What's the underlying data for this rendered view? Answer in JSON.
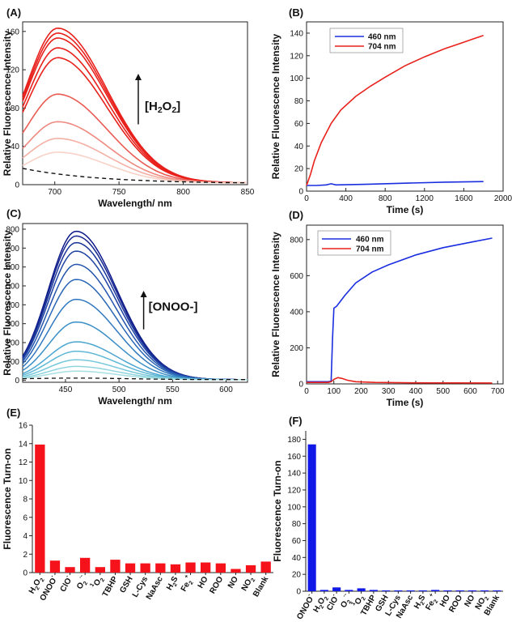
{
  "chart_data": [
    {
      "panel": "(A)",
      "type": "line",
      "xlabel": "Wavelength/ nm",
      "ylabel": "Relative Fluorescence Intensity",
      "xlim": [
        675,
        850
      ],
      "ylim": [
        0,
        170
      ],
      "xticks": [
        700,
        750,
        800,
        850
      ],
      "yticks": [
        0,
        40,
        80,
        120,
        160
      ],
      "annotation": "[H2O2]",
      "annotation_arrow": "up",
      "peak_x": 703,
      "series": [
        {
          "peak": 157,
          "color": "#e8211c"
        },
        {
          "peak": 152,
          "color": "#e8211c"
        },
        {
          "peak": 147,
          "color": "#e8211c"
        },
        {
          "peak": 137,
          "color": "#e8211c"
        },
        {
          "peak": 127,
          "color": "#e8211c"
        },
        {
          "peak": 90,
          "color": "#ea5a52"
        },
        {
          "peak": 62,
          "color": "#ef8a80"
        },
        {
          "peak": 45,
          "color": "#f4b0a4"
        },
        {
          "peak": 31,
          "color": "#f8d2c6"
        },
        {
          "peak": 17,
          "color": "#111111",
          "dashed": true
        }
      ]
    },
    {
      "panel": "(B)",
      "type": "line",
      "xlabel": "Time (s)",
      "ylabel": "Relative Fluorescence Intensity",
      "xlim": [
        0,
        2000
      ],
      "ylim": [
        0,
        150
      ],
      "xticks": [
        0,
        400,
        800,
        1200,
        1600,
        2000
      ],
      "yticks": [
        0,
        20,
        40,
        60,
        80,
        100,
        120,
        140
      ],
      "legend_position": "top-left",
      "series": [
        {
          "name": "460 nm",
          "color": "#1a2ee0",
          "x": [
            0,
            100,
            200,
            250,
            300,
            600,
            1000,
            1400,
            1800
          ],
          "y": [
            5,
            5,
            5.5,
            6.5,
            5.5,
            6,
            7,
            8,
            8.5
          ]
        },
        {
          "name": "704 nm",
          "color": "#e8211c",
          "x": [
            0,
            40,
            80,
            150,
            250,
            350,
            500,
            650,
            800,
            1000,
            1200,
            1400,
            1600,
            1700,
            1800
          ],
          "y": [
            5,
            15,
            27,
            43,
            60,
            72,
            84,
            93,
            101,
            111,
            119,
            126,
            132,
            135,
            138
          ]
        }
      ]
    },
    {
      "panel": "(C)",
      "type": "line",
      "xlabel": "Wavelength/ nm",
      "ylabel": "Relative Fluorescence Intensity",
      "xlim": [
        410,
        620
      ],
      "ylim": [
        -10,
        830
      ],
      "xticks": [
        450,
        500,
        550,
        600
      ],
      "yticks": [
        0,
        100,
        200,
        300,
        400,
        500,
        600,
        700,
        800
      ],
      "annotation": "[ONOO-]",
      "annotation_arrow": "up",
      "peak_x": 460,
      "series": [
        {
          "peak": 785,
          "color": "#0d1a8a"
        },
        {
          "peak": 760,
          "color": "#15258f"
        },
        {
          "peak": 725,
          "color": "#1a3499"
        },
        {
          "peak": 680,
          "color": "#1f43a3"
        },
        {
          "peak": 610,
          "color": "#2454ad"
        },
        {
          "peak": 530,
          "color": "#2a66b6"
        },
        {
          "peak": 425,
          "color": "#3079bf"
        },
        {
          "peak": 305,
          "color": "#3a8fc7"
        },
        {
          "peak": 200,
          "color": "#4aa5cf"
        },
        {
          "peak": 150,
          "color": "#5fb8d5"
        },
        {
          "peak": 105,
          "color": "#76c8da"
        },
        {
          "peak": 70,
          "color": "#8fd5de"
        },
        {
          "peak": 45,
          "color": "#a8dfe2"
        },
        {
          "peak": 12,
          "color": "#111111",
          "dashed": true
        }
      ]
    },
    {
      "panel": "(D)",
      "type": "line",
      "xlabel": "Time (s)",
      "ylabel": "Relative Fluorescence Intensity",
      "xlim": [
        0,
        720
      ],
      "ylim": [
        0,
        880
      ],
      "xticks": [
        0,
        100,
        200,
        300,
        400,
        500,
        600,
        700
      ],
      "yticks": [
        0,
        200,
        400,
        600,
        800
      ],
      "legend_position": "top-left",
      "series": [
        {
          "name": "460 nm",
          "color": "#1a2ee0",
          "x": [
            0,
            80,
            90,
            95,
            100,
            110,
            120,
            140,
            180,
            240,
            300,
            400,
            500,
            600,
            680
          ],
          "y": [
            12,
            12,
            15,
            250,
            420,
            430,
            450,
            490,
            560,
            620,
            660,
            715,
            755,
            785,
            808
          ]
        },
        {
          "name": "704 nm",
          "color": "#e8211c",
          "x": [
            0,
            80,
            90,
            100,
            115,
            130,
            150,
            180,
            250,
            400,
            680
          ],
          "y": [
            8,
            8,
            12,
            25,
            35,
            30,
            20,
            12,
            8,
            6,
            5
          ]
        }
      ]
    },
    {
      "panel": "(E)",
      "type": "bar",
      "ylabel": "Fluorescence Turn-on",
      "ylim": [
        0,
        16
      ],
      "yticks": [
        0,
        2,
        4,
        6,
        8,
        10,
        12,
        14,
        16
      ],
      "color": "#f5121b",
      "categories": [
        "H2O2",
        "ONOO-",
        "ClO-",
        "O2·-",
        "1O2",
        "TBHP",
        "GSH",
        "L-Cys",
        "NaAsc",
        "H2S",
        "Fe2+",
        "HO",
        "ROO",
        "NO",
        "NO2",
        "Blank"
      ],
      "values": [
        13.9,
        1.3,
        0.6,
        1.6,
        0.6,
        1.4,
        1.0,
        1.0,
        1.0,
        0.9,
        1.1,
        1.1,
        1.0,
        0.4,
        0.8,
        1.2
      ]
    },
    {
      "panel": "(F)",
      "type": "bar",
      "ylabel": "Fluorescence Turn-on",
      "ylim": [
        0,
        190
      ],
      "yticks": [
        0,
        20,
        40,
        60,
        80,
        100,
        120,
        140,
        160,
        180
      ],
      "color": "#1018e8",
      "categories": [
        "ONOO-",
        "H2O2",
        "ClO-",
        "O2·-",
        "1O2",
        "TBHP",
        "GSH",
        "L-Cys",
        "NaAsc",
        "H2S",
        "Fe2+",
        "HO",
        "ROO",
        "NO",
        "NO2",
        "Blank"
      ],
      "values": [
        174,
        1.5,
        4.5,
        1.5,
        3.5,
        1.5,
        1.0,
        1.0,
        1.0,
        1.0,
        1.5,
        1.0,
        1.0,
        1.0,
        1.0,
        1.0
      ]
    }
  ]
}
